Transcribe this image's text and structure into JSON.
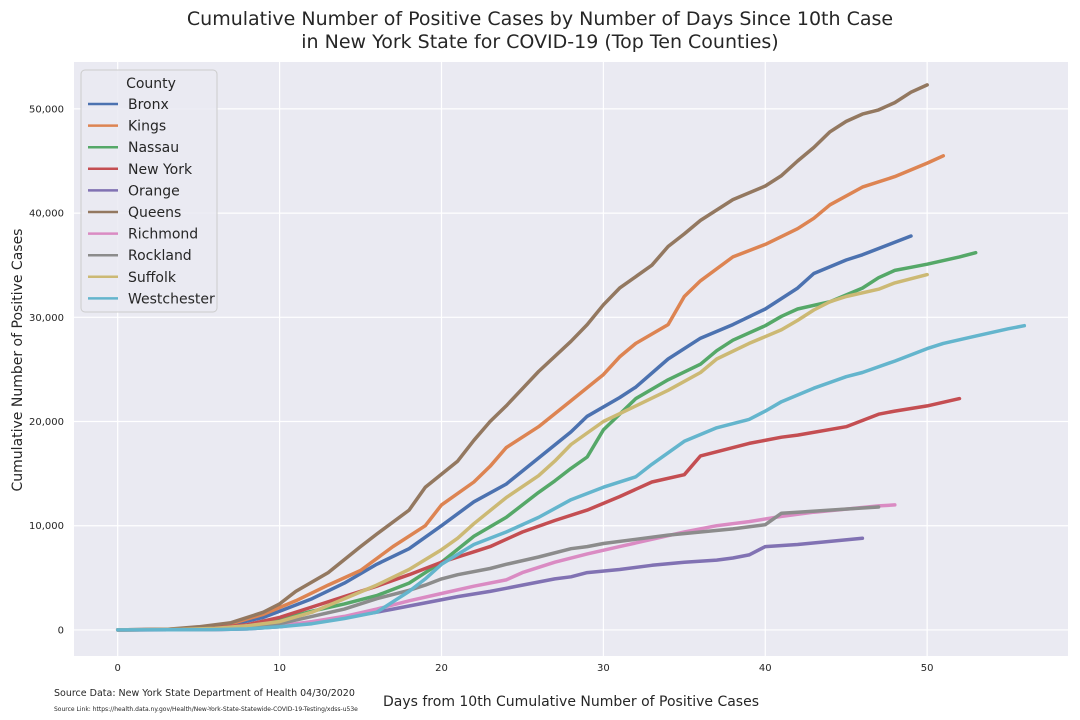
{
  "title_line1": "Cumulative Number of Positive Cases by Number of Days Since 10th Case",
  "title_line2": "in New York State for COVID-19 (Top Ten Counties)",
  "source_data": "Source Data: New York State Department of Health 04/30/2020",
  "source_link": "Source Link: https://health.data.ny.gov/Health/New-York-State-Statewide-COVID-19-Testing/xdss-u53e",
  "chart_data": {
    "type": "line",
    "title": "Cumulative Number of Positive Cases by Number of Days Since 10th Case in New York State for COVID-19 (Top Ten Counties)",
    "xlabel": "Days from 10th Cumulative Number of Positive Cases",
    "ylabel": "Cumulative Number of Positive Cases",
    "xlim": [
      -2.7,
      58.7
    ],
    "ylim": [
      -2500,
      54500
    ],
    "xticks": [
      0,
      10,
      20,
      30,
      40,
      50
    ],
    "yticks": [
      0,
      10000,
      20000,
      30000,
      40000,
      50000
    ],
    "ytick_labels": [
      "0",
      "10,000",
      "20,000",
      "30,000",
      "40,000",
      "50,000"
    ],
    "legend_title": "County",
    "legend_position": "top-left",
    "grid": true,
    "series": [
      {
        "name": "Bronx",
        "color": "#4c72b0",
        "points": [
          [
            0,
            0
          ],
          [
            3,
            50
          ],
          [
            5,
            200
          ],
          [
            7,
            500
          ],
          [
            9,
            1200
          ],
          [
            10,
            1800
          ],
          [
            12,
            3000
          ],
          [
            14,
            4500
          ],
          [
            16,
            6300
          ],
          [
            18,
            7800
          ],
          [
            20,
            10000
          ],
          [
            22,
            12300
          ],
          [
            24,
            14000
          ],
          [
            26,
            16500
          ],
          [
            28,
            19000
          ],
          [
            29,
            20500
          ],
          [
            31,
            22300
          ],
          [
            32,
            23300
          ],
          [
            34,
            26000
          ],
          [
            36,
            28000
          ],
          [
            38,
            29300
          ],
          [
            40,
            30800
          ],
          [
            42,
            32800
          ],
          [
            43,
            34200
          ],
          [
            45,
            35500
          ],
          [
            46,
            36000
          ],
          [
            48,
            37200
          ],
          [
            49,
            37800
          ]
        ]
      },
      {
        "name": "Kings",
        "color": "#dd8452",
        "points": [
          [
            0,
            0
          ],
          [
            3,
            50
          ],
          [
            5,
            200
          ],
          [
            7,
            600
          ],
          [
            9,
            1500
          ],
          [
            11,
            2800
          ],
          [
            13,
            4300
          ],
          [
            15,
            5700
          ],
          [
            17,
            8000
          ],
          [
            19,
            10000
          ],
          [
            20,
            12000
          ],
          [
            22,
            14200
          ],
          [
            23,
            15700
          ],
          [
            24,
            17500
          ],
          [
            26,
            19500
          ],
          [
            28,
            22000
          ],
          [
            30,
            24500
          ],
          [
            31,
            26200
          ],
          [
            32,
            27500
          ],
          [
            34,
            29300
          ],
          [
            35,
            32000
          ],
          [
            36,
            33500
          ],
          [
            38,
            35800
          ],
          [
            40,
            37000
          ],
          [
            42,
            38500
          ],
          [
            43,
            39500
          ],
          [
            44,
            40800
          ],
          [
            46,
            42500
          ],
          [
            48,
            43500
          ],
          [
            50,
            44800
          ],
          [
            51,
            45500
          ]
        ]
      },
      {
        "name": "Nassau",
        "color": "#55a868",
        "points": [
          [
            0,
            0
          ],
          [
            4,
            50
          ],
          [
            6,
            150
          ],
          [
            8,
            400
          ],
          [
            10,
            1000
          ],
          [
            12,
            1800
          ],
          [
            14,
            2500
          ],
          [
            16,
            3300
          ],
          [
            18,
            4500
          ],
          [
            20,
            6500
          ],
          [
            22,
            9000
          ],
          [
            24,
            10800
          ],
          [
            26,
            13200
          ],
          [
            27,
            14300
          ],
          [
            28,
            15500
          ],
          [
            29,
            16600
          ],
          [
            30,
            19200
          ],
          [
            32,
            22200
          ],
          [
            34,
            24000
          ],
          [
            36,
            25500
          ],
          [
            37,
            26800
          ],
          [
            38,
            27800
          ],
          [
            40,
            29200
          ],
          [
            41,
            30100
          ],
          [
            42,
            30800
          ],
          [
            44,
            31500
          ],
          [
            46,
            32800
          ],
          [
            47,
            33800
          ],
          [
            48,
            34500
          ],
          [
            49,
            34800
          ],
          [
            50,
            35100
          ],
          [
            52,
            35800
          ],
          [
            53,
            36200
          ]
        ]
      },
      {
        "name": "New York",
        "color": "#c44e52",
        "points": [
          [
            0,
            0
          ],
          [
            4,
            50
          ],
          [
            6,
            200
          ],
          [
            8,
            500
          ],
          [
            10,
            1200
          ],
          [
            12,
            2200
          ],
          [
            14,
            3200
          ],
          [
            16,
            4200
          ],
          [
            18,
            5300
          ],
          [
            20,
            6500
          ],
          [
            22,
            7500
          ],
          [
            23,
            8000
          ],
          [
            24,
            8700
          ],
          [
            25,
            9400
          ],
          [
            27,
            10500
          ],
          [
            29,
            11500
          ],
          [
            31,
            12800
          ],
          [
            33,
            14200
          ],
          [
            35,
            14900
          ],
          [
            36,
            16700
          ],
          [
            39,
            17900
          ],
          [
            41,
            18500
          ],
          [
            42,
            18700
          ],
          [
            45,
            19500
          ],
          [
            47,
            20700
          ],
          [
            48,
            21000
          ],
          [
            50,
            21500
          ],
          [
            52,
            22200
          ]
        ]
      },
      {
        "name": "Orange",
        "color": "#8172b3",
        "points": [
          [
            0,
            0
          ],
          [
            6,
            30
          ],
          [
            8,
            100
          ],
          [
            10,
            300
          ],
          [
            12,
            700
          ],
          [
            14,
            1200
          ],
          [
            16,
            1700
          ],
          [
            17,
            2000
          ],
          [
            18,
            2300
          ],
          [
            19,
            2600
          ],
          [
            21,
            3200
          ],
          [
            23,
            3700
          ],
          [
            24,
            4000
          ],
          [
            25,
            4300
          ],
          [
            26,
            4600
          ],
          [
            27,
            4900
          ],
          [
            28,
            5100
          ],
          [
            29,
            5500
          ],
          [
            31,
            5800
          ],
          [
            33,
            6200
          ],
          [
            35,
            6500
          ],
          [
            37,
            6700
          ],
          [
            38,
            6900
          ],
          [
            39,
            7200
          ],
          [
            40,
            8000
          ],
          [
            42,
            8200
          ],
          [
            44,
            8500
          ],
          [
            46,
            8800
          ]
        ]
      },
      {
        "name": "Queens",
        "color": "#937860",
        "points": [
          [
            0,
            0
          ],
          [
            3,
            50
          ],
          [
            5,
            300
          ],
          [
            7,
            700
          ],
          [
            9,
            1700
          ],
          [
            10,
            2500
          ],
          [
            11,
            3700
          ],
          [
            13,
            5500
          ],
          [
            15,
            8000
          ],
          [
            16,
            9200
          ],
          [
            18,
            11500
          ],
          [
            19,
            13700
          ],
          [
            21,
            16200
          ],
          [
            22,
            18200
          ],
          [
            23,
            20000
          ],
          [
            24,
            21500
          ],
          [
            26,
            24800
          ],
          [
            28,
            27700
          ],
          [
            29,
            29300
          ],
          [
            30,
            31200
          ],
          [
            31,
            32800
          ],
          [
            33,
            35000
          ],
          [
            34,
            36800
          ],
          [
            35,
            38000
          ],
          [
            36,
            39300
          ],
          [
            38,
            41300
          ],
          [
            40,
            42600
          ],
          [
            41,
            43600
          ],
          [
            42,
            45000
          ],
          [
            43,
            46300
          ],
          [
            44,
            47800
          ],
          [
            45,
            48800
          ],
          [
            46,
            49500
          ],
          [
            47,
            49900
          ],
          [
            48,
            50600
          ],
          [
            49,
            51600
          ],
          [
            50,
            52300
          ]
        ]
      },
      {
        "name": "Richmond",
        "color": "#da8bc3",
        "points": [
          [
            0,
            0
          ],
          [
            6,
            30
          ],
          [
            8,
            150
          ],
          [
            10,
            400
          ],
          [
            12,
            800
          ],
          [
            14,
            1300
          ],
          [
            16,
            2000
          ],
          [
            18,
            2800
          ],
          [
            20,
            3500
          ],
          [
            22,
            4200
          ],
          [
            24,
            4800
          ],
          [
            25,
            5500
          ],
          [
            27,
            6500
          ],
          [
            29,
            7300
          ],
          [
            31,
            8000
          ],
          [
            33,
            8700
          ],
          [
            35,
            9400
          ],
          [
            37,
            10000
          ],
          [
            39,
            10400
          ],
          [
            41,
            10900
          ],
          [
            43,
            11300
          ],
          [
            45,
            11600
          ],
          [
            47,
            11900
          ],
          [
            48,
            12000
          ]
        ]
      },
      {
        "name": "Rockland",
        "color": "#8c8c8c",
        "points": [
          [
            0,
            0
          ],
          [
            6,
            50
          ],
          [
            8,
            200
          ],
          [
            10,
            600
          ],
          [
            12,
            1300
          ],
          [
            14,
            2000
          ],
          [
            16,
            3000
          ],
          [
            18,
            3800
          ],
          [
            19,
            4300
          ],
          [
            20,
            4900
          ],
          [
            21,
            5300
          ],
          [
            23,
            5900
          ],
          [
            24,
            6300
          ],
          [
            26,
            7000
          ],
          [
            28,
            7800
          ],
          [
            29,
            8000
          ],
          [
            30,
            8300
          ],
          [
            32,
            8700
          ],
          [
            34,
            9100
          ],
          [
            36,
            9400
          ],
          [
            38,
            9700
          ],
          [
            40,
            10100
          ],
          [
            41,
            11200
          ],
          [
            42,
            11300
          ],
          [
            44,
            11500
          ],
          [
            46,
            11700
          ],
          [
            47,
            11800
          ]
        ]
      },
      {
        "name": "Suffolk",
        "color": "#ccb974",
        "points": [
          [
            0,
            0
          ],
          [
            4,
            50
          ],
          [
            6,
            150
          ],
          [
            8,
            400
          ],
          [
            10,
            800
          ],
          [
            12,
            1700
          ],
          [
            14,
            3000
          ],
          [
            16,
            4300
          ],
          [
            18,
            5800
          ],
          [
            20,
            7700
          ],
          [
            21,
            8800
          ],
          [
            22,
            10200
          ],
          [
            24,
            12700
          ],
          [
            26,
            14800
          ],
          [
            27,
            16200
          ],
          [
            28,
            17800
          ],
          [
            30,
            20000
          ],
          [
            32,
            21500
          ],
          [
            34,
            23000
          ],
          [
            36,
            24700
          ],
          [
            37,
            26000
          ],
          [
            39,
            27500
          ],
          [
            41,
            28800
          ],
          [
            42,
            29700
          ],
          [
            43,
            30700
          ],
          [
            44,
            31500
          ],
          [
            45,
            32000
          ],
          [
            47,
            32700
          ],
          [
            48,
            33300
          ],
          [
            50,
            34100
          ]
        ]
      },
      {
        "name": "Westchester",
        "color": "#64b5cd",
        "points": [
          [
            0,
            0
          ],
          [
            6,
            30
          ],
          [
            8,
            100
          ],
          [
            10,
            300
          ],
          [
            12,
            600
          ],
          [
            14,
            1100
          ],
          [
            16,
            1700
          ],
          [
            18,
            3700
          ],
          [
            19,
            4900
          ],
          [
            20,
            6300
          ],
          [
            22,
            8200
          ],
          [
            24,
            9400
          ],
          [
            26,
            10800
          ],
          [
            28,
            12500
          ],
          [
            30,
            13700
          ],
          [
            32,
            14700
          ],
          [
            33,
            15900
          ],
          [
            35,
            18100
          ],
          [
            37,
            19400
          ],
          [
            39,
            20200
          ],
          [
            40,
            21000
          ],
          [
            41,
            21900
          ],
          [
            43,
            23200
          ],
          [
            45,
            24300
          ],
          [
            46,
            24700
          ],
          [
            48,
            25800
          ],
          [
            50,
            27000
          ],
          [
            51,
            27500
          ],
          [
            53,
            28200
          ],
          [
            55,
            28900
          ],
          [
            56,
            29200
          ]
        ]
      }
    ]
  }
}
